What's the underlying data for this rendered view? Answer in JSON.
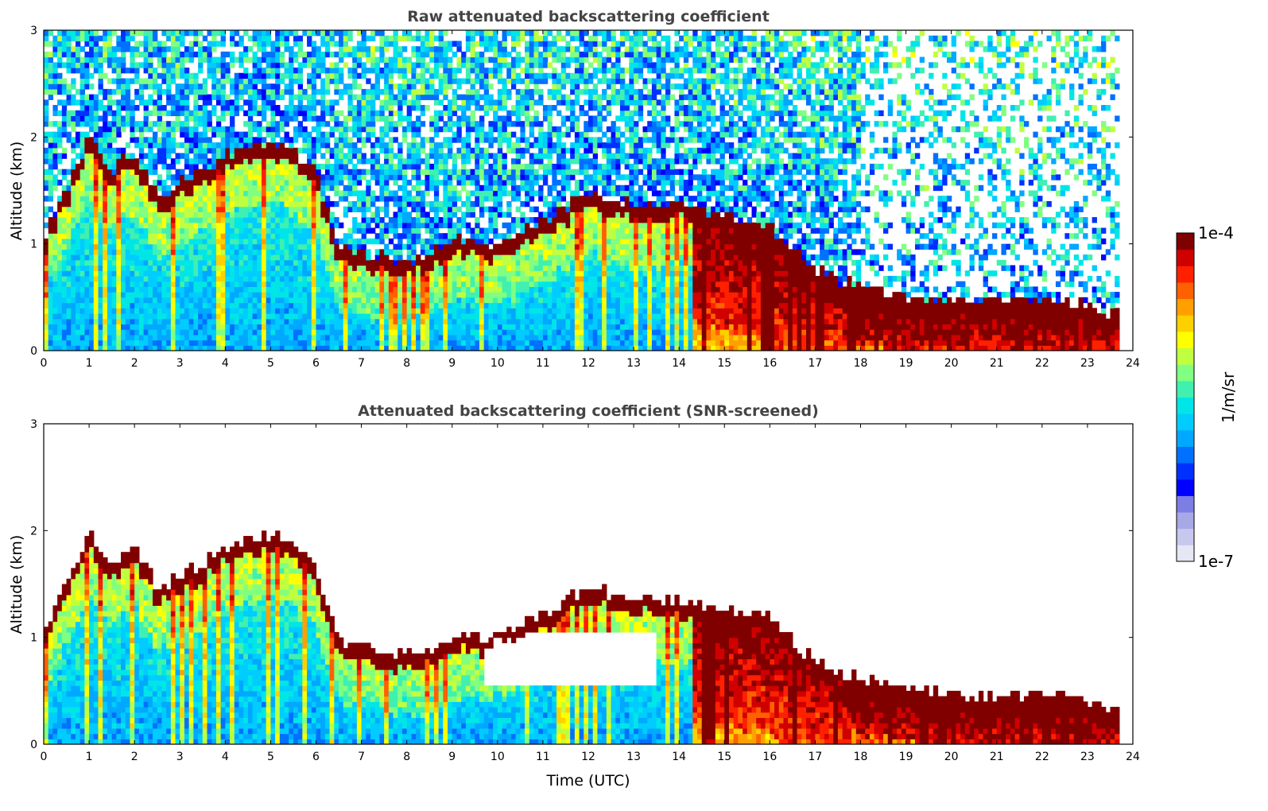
{
  "chart_data": [
    {
      "type": "heatmap",
      "title": "Raw attenuated backscattering coefficient",
      "xlabel": "",
      "ylabel": "Altitude (km)",
      "xlim": [
        0,
        24
      ],
      "ylim": [
        0,
        3
      ],
      "x_ticks": [
        "0",
        "1",
        "2",
        "3",
        "4",
        "5",
        "6",
        "7",
        "8",
        "9",
        "10",
        "11",
        "12",
        "13",
        "14",
        "15",
        "16",
        "17",
        "18",
        "19",
        "20",
        "21",
        "22",
        "23",
        "24"
      ],
      "y_ticks": [
        "0",
        "1",
        "2",
        "3"
      ],
      "data_end_time": 23.7,
      "screened": false,
      "layer_profile": {
        "time": [
          0,
          1,
          1.5,
          2,
          2.5,
          3,
          4,
          4.5,
          5,
          5.5,
          6,
          6.5,
          7,
          8,
          9,
          10,
          11,
          12,
          13,
          14,
          15,
          16,
          17,
          17.5,
          18,
          19,
          20,
          21,
          22,
          23,
          23.7
        ],
        "altitude": [
          1.0,
          1.9,
          1.6,
          1.8,
          1.4,
          1.5,
          1.75,
          1.85,
          1.9,
          1.8,
          1.6,
          0.9,
          0.85,
          0.75,
          0.95,
          0.95,
          1.15,
          1.4,
          1.3,
          1.3,
          1.2,
          1.1,
          0.7,
          0.6,
          0.55,
          0.45,
          0.4,
          0.4,
          0.4,
          0.35,
          0.25
        ]
      }
    },
    {
      "type": "heatmap",
      "title": "Attenuated backscattering coefficient (SNR-screened)",
      "xlabel": "Time (UTC)",
      "ylabel": "Altitude (km)",
      "xlim": [
        0,
        24
      ],
      "ylim": [
        0,
        3
      ],
      "x_ticks": [
        "0",
        "1",
        "2",
        "3",
        "4",
        "5",
        "6",
        "7",
        "8",
        "9",
        "10",
        "11",
        "12",
        "13",
        "14",
        "15",
        "16",
        "17",
        "18",
        "19",
        "20",
        "21",
        "22",
        "23",
        "24"
      ],
      "y_ticks": [
        "0",
        "1",
        "2",
        "3"
      ],
      "data_end_time": 23.7,
      "screened": true,
      "layer_profile": {
        "time": [
          0,
          1,
          1.5,
          2,
          2.5,
          3,
          4,
          4.5,
          5,
          5.5,
          6,
          6.5,
          7,
          8,
          9,
          10,
          11,
          12,
          13,
          14,
          15,
          16,
          17,
          17.5,
          18,
          19,
          20,
          21,
          22,
          23,
          23.7
        ],
        "altitude": [
          1.0,
          1.9,
          1.6,
          1.8,
          1.4,
          1.5,
          1.75,
          1.85,
          1.9,
          1.8,
          1.6,
          0.9,
          0.85,
          0.75,
          0.95,
          0.95,
          1.15,
          1.4,
          1.3,
          1.3,
          1.2,
          1.1,
          0.7,
          0.6,
          0.55,
          0.45,
          0.4,
          0.4,
          0.4,
          0.35,
          0.25
        ]
      }
    }
  ],
  "colorbar": {
    "label": "1/m/sr",
    "min_label": "1e-7",
    "max_label": "1e-4",
    "colors": [
      "#e6e6f5",
      "#c8c8ee",
      "#a8a8e6",
      "#7d7de6",
      "#0000ff",
      "#0030ff",
      "#0070ff",
      "#00a8ff",
      "#00ccff",
      "#00e6e6",
      "#40f0b0",
      "#80ff80",
      "#c0ff40",
      "#ffff00",
      "#ffd000",
      "#ffa000",
      "#ff6000",
      "#ff2000",
      "#d00000",
      "#800000"
    ]
  }
}
